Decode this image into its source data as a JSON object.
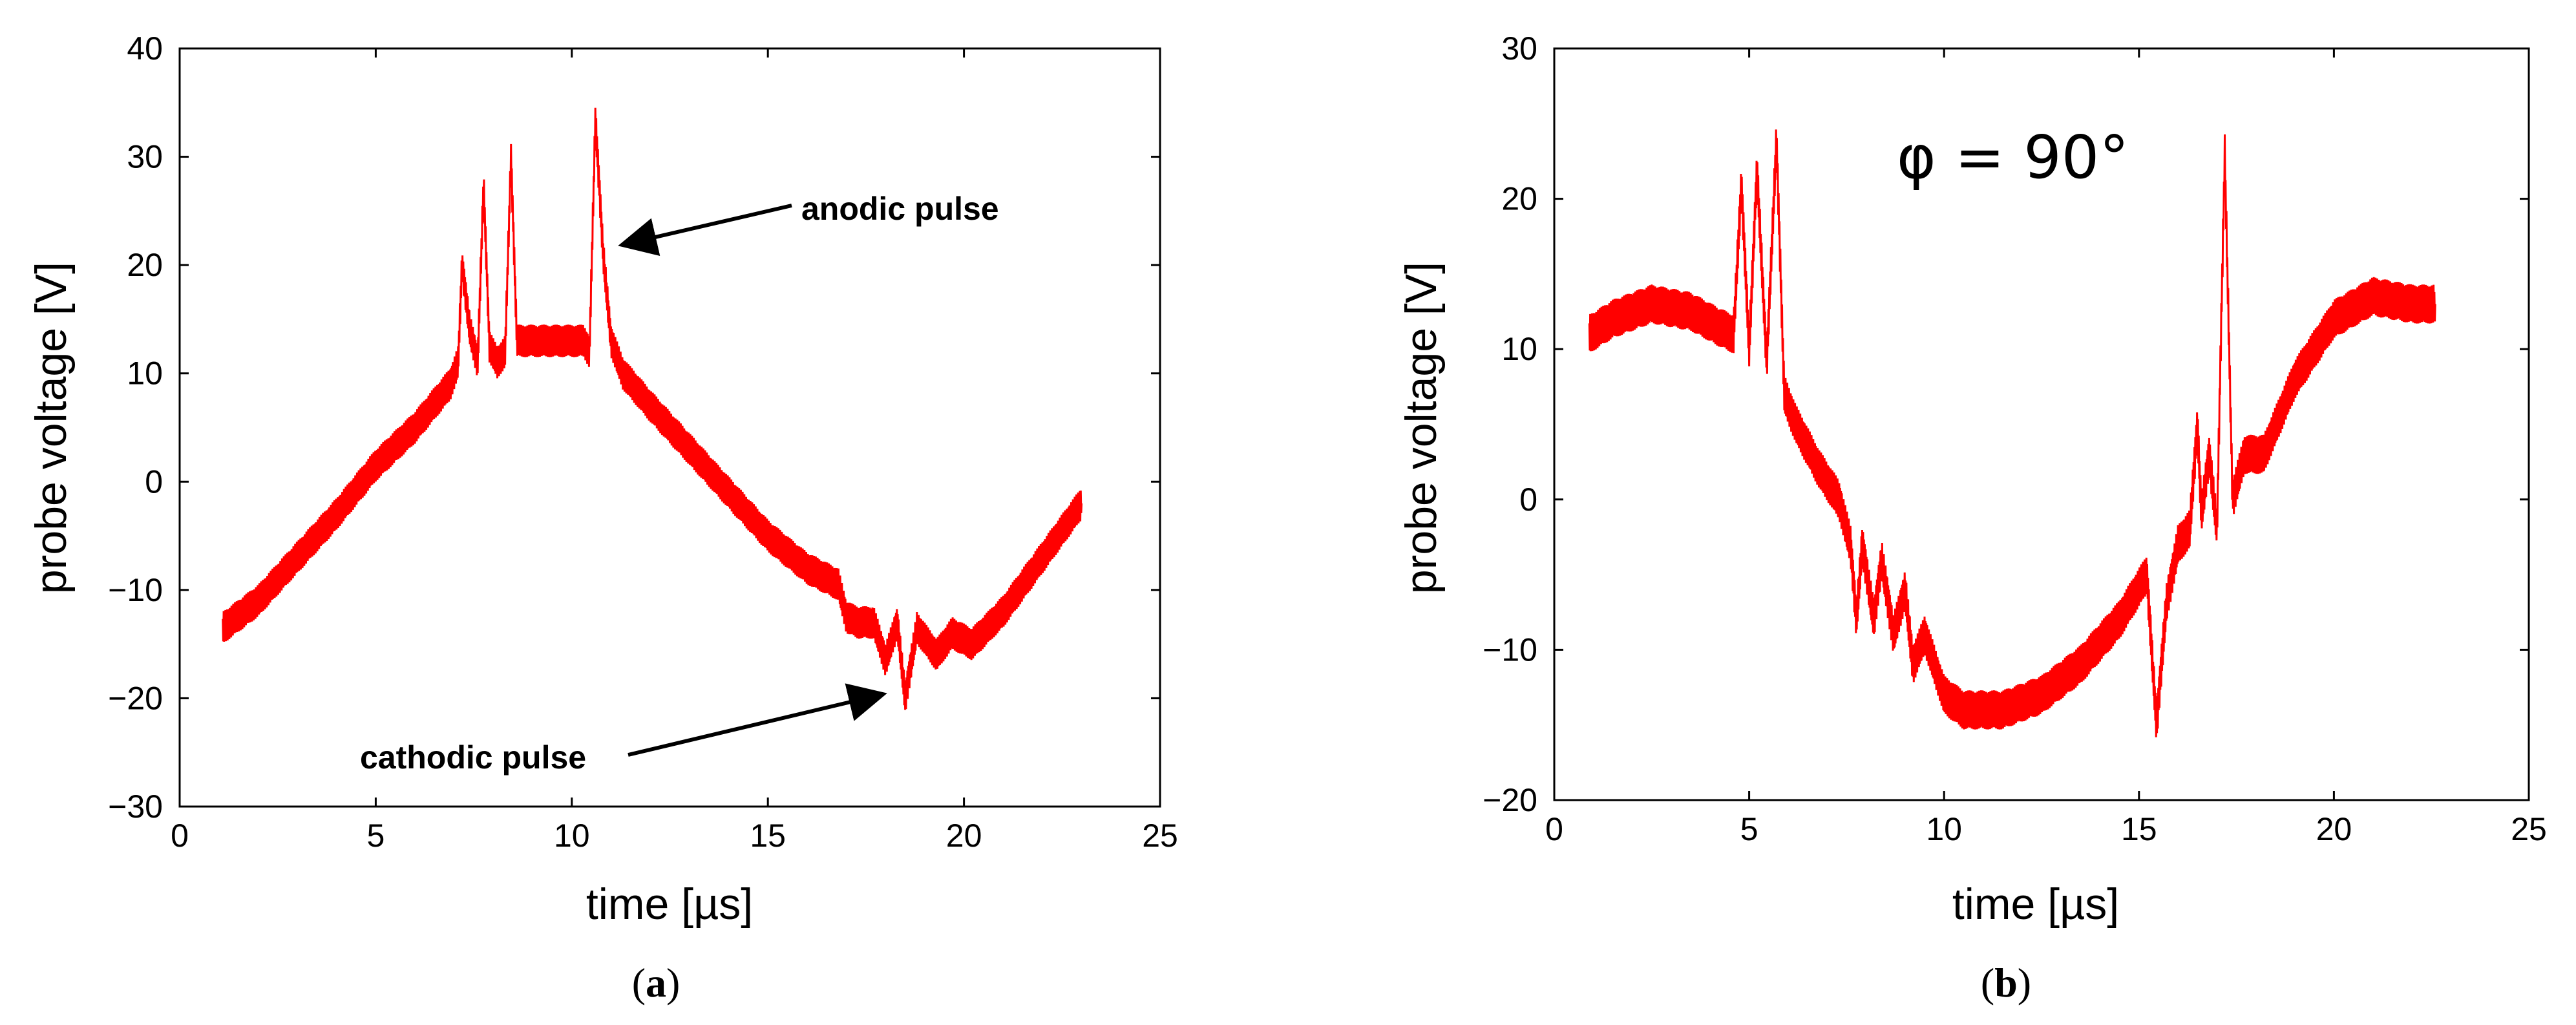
{
  "chart_data": [
    {
      "type": "line",
      "panel": "a",
      "caption_open": "(",
      "caption_letter": "a",
      "caption_close": ")",
      "xlabel": "time [µs]",
      "ylabel": "probe voltage [V]",
      "xlim": [
        0,
        25
      ],
      "ylim": [
        -30,
        40
      ],
      "xticks": [
        0,
        5,
        10,
        15,
        20,
        25
      ],
      "yticks": [
        -30,
        -20,
        -10,
        0,
        10,
        20,
        30,
        40
      ],
      "xtick_labels": [
        "0",
        "5",
        "10",
        "15",
        "20",
        "25"
      ],
      "ytick_labels": [
        "−30",
        "−20",
        "−10",
        "0",
        "10",
        "20",
        "30",
        "40"
      ],
      "grid": false,
      "noise_amplitude": 1.5,
      "series": [
        {
          "name": "probe voltage",
          "color": "#ff0000",
          "x": [
            1.1,
            2,
            3,
            4,
            5,
            6,
            6.9,
            7.1,
            7.2,
            7.4,
            7.6,
            7.75,
            7.9,
            8.1,
            8.3,
            8.45,
            8.6,
            8.9,
            9.5,
            10.3,
            10.45,
            10.6,
            10.8,
            11.0,
            11.3,
            12,
            13,
            14,
            15,
            16,
            16.8,
            17.0,
            17.3,
            17.7,
            18.0,
            18.3,
            18.5,
            18.8,
            19.3,
            19.7,
            20.2,
            21,
            22,
            22.5,
            23.0
          ],
          "y": [
            -13.5,
            -11,
            -7,
            -3,
            1.5,
            5,
            9,
            11,
            20,
            14,
            11,
            27.5,
            12.5,
            11,
            12,
            30,
            13,
            13,
            13,
            13,
            12,
            33.5,
            21,
            13,
            10,
            7,
            3,
            -1,
            -5,
            -8,
            -9.5,
            -12.5,
            -13,
            -13,
            -16.5,
            -13,
            -20,
            -13.5,
            -16,
            -14,
            -15,
            -12,
            -7,
            -4.5,
            -2
          ]
        }
      ],
      "annotations": [
        {
          "text": "anodic pulse",
          "x": 10.9,
          "y": 22
        },
        {
          "text": "cathodic pulse",
          "x": 18.5,
          "y": -20
        }
      ]
    },
    {
      "type": "line",
      "panel": "b",
      "caption_open": "(",
      "caption_letter": "b",
      "caption_close": ")",
      "xlabel": "time [µs]",
      "ylabel": "probe voltage [V]",
      "xlim": [
        0,
        25
      ],
      "ylim": [
        -20,
        30
      ],
      "xticks": [
        0,
        5,
        10,
        15,
        20,
        25
      ],
      "yticks": [
        -20,
        -10,
        0,
        10,
        20,
        30
      ],
      "xtick_labels": [
        "0",
        "5",
        "10",
        "15",
        "20",
        "25"
      ],
      "ytick_labels": [
        "−20",
        "−10",
        "0",
        "10",
        "20",
        "30"
      ],
      "grid": false,
      "noise_amplitude": 1.3,
      "series": [
        {
          "name": "probe voltage",
          "color": "#ff0000",
          "x": [
            0.9,
            1.5,
            2.5,
            3.5,
            4.2,
            4.6,
            4.8,
            5.0,
            5.2,
            5.45,
            5.7,
            5.9,
            6.2,
            6.8,
            7.3,
            7.6,
            7.75,
            7.9,
            8.2,
            8.4,
            8.7,
            9.0,
            9.2,
            9.5,
            10.0,
            10.5,
            11.5,
            12.5,
            13.5,
            14.5,
            15.2,
            15.45,
            15.7,
            16.0,
            16.3,
            16.5,
            16.6,
            16.8,
            17.0,
            17.2,
            17.4,
            17.7,
            18.2,
            19.0,
            20.0,
            21.0,
            22.0,
            22.6
          ],
          "y": [
            11,
            12,
            13,
            12.5,
            11.5,
            11,
            21,
            10,
            22,
            9,
            24,
            7,
            5,
            2,
            0,
            -3,
            -8,
            -3,
            -8,
            -4,
            -9,
            -6,
            -11,
            -9,
            -13,
            -14,
            -14,
            -13,
            -11,
            -8,
            -5,
            -15,
            -7,
            -3,
            -2,
            5,
            -1,
            3,
            -2,
            23,
            0,
            3,
            3,
            8,
            12,
            13.5,
            13,
            13
          ]
        }
      ],
      "annotations": [
        {
          "text": "φ = 90°"
        }
      ]
    }
  ]
}
